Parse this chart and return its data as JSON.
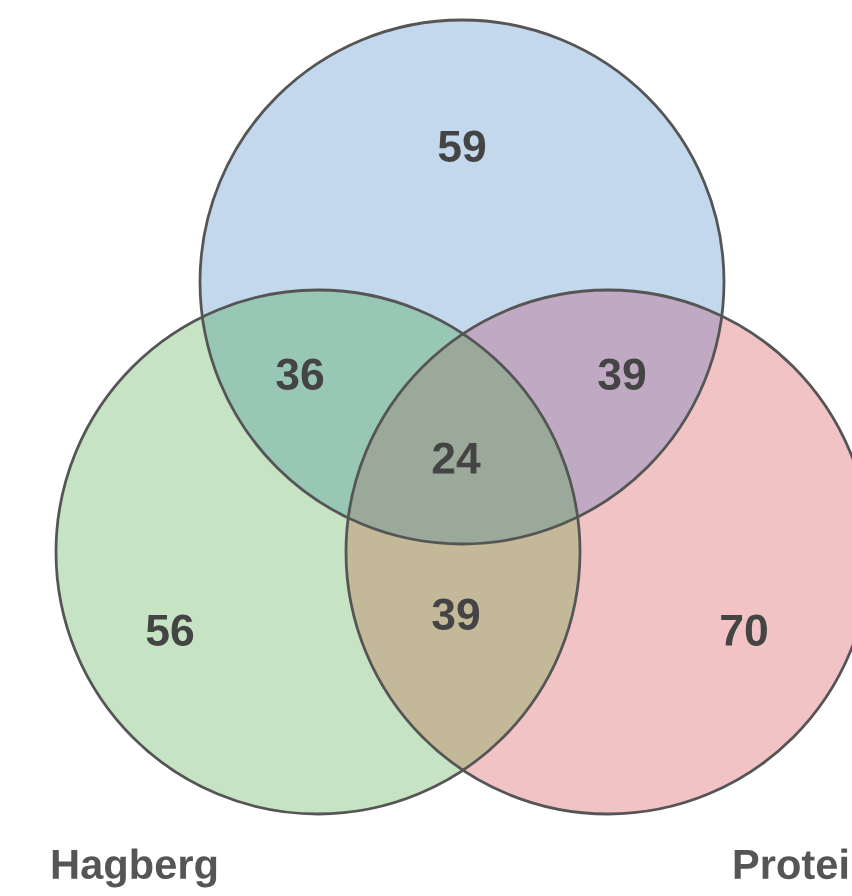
{
  "chart_data": {
    "type": "other",
    "categories": [
      null,
      null,
      null,
      null,
      null,
      null,
      null
    ],
    "values": [
      59,
      36,
      39,
      24,
      56,
      39,
      70
    ],
    "colors": [
      "#c3d8ec",
      "#98c7b6",
      "#c0a9c2",
      "#9aa99a",
      "#c6e3c3",
      "#c3b898",
      "#f2c3c5"
    ],
    "data_labels": true,
    "annotations": [
      "Hagberg",
      "Protei"
    ]
  }
}
